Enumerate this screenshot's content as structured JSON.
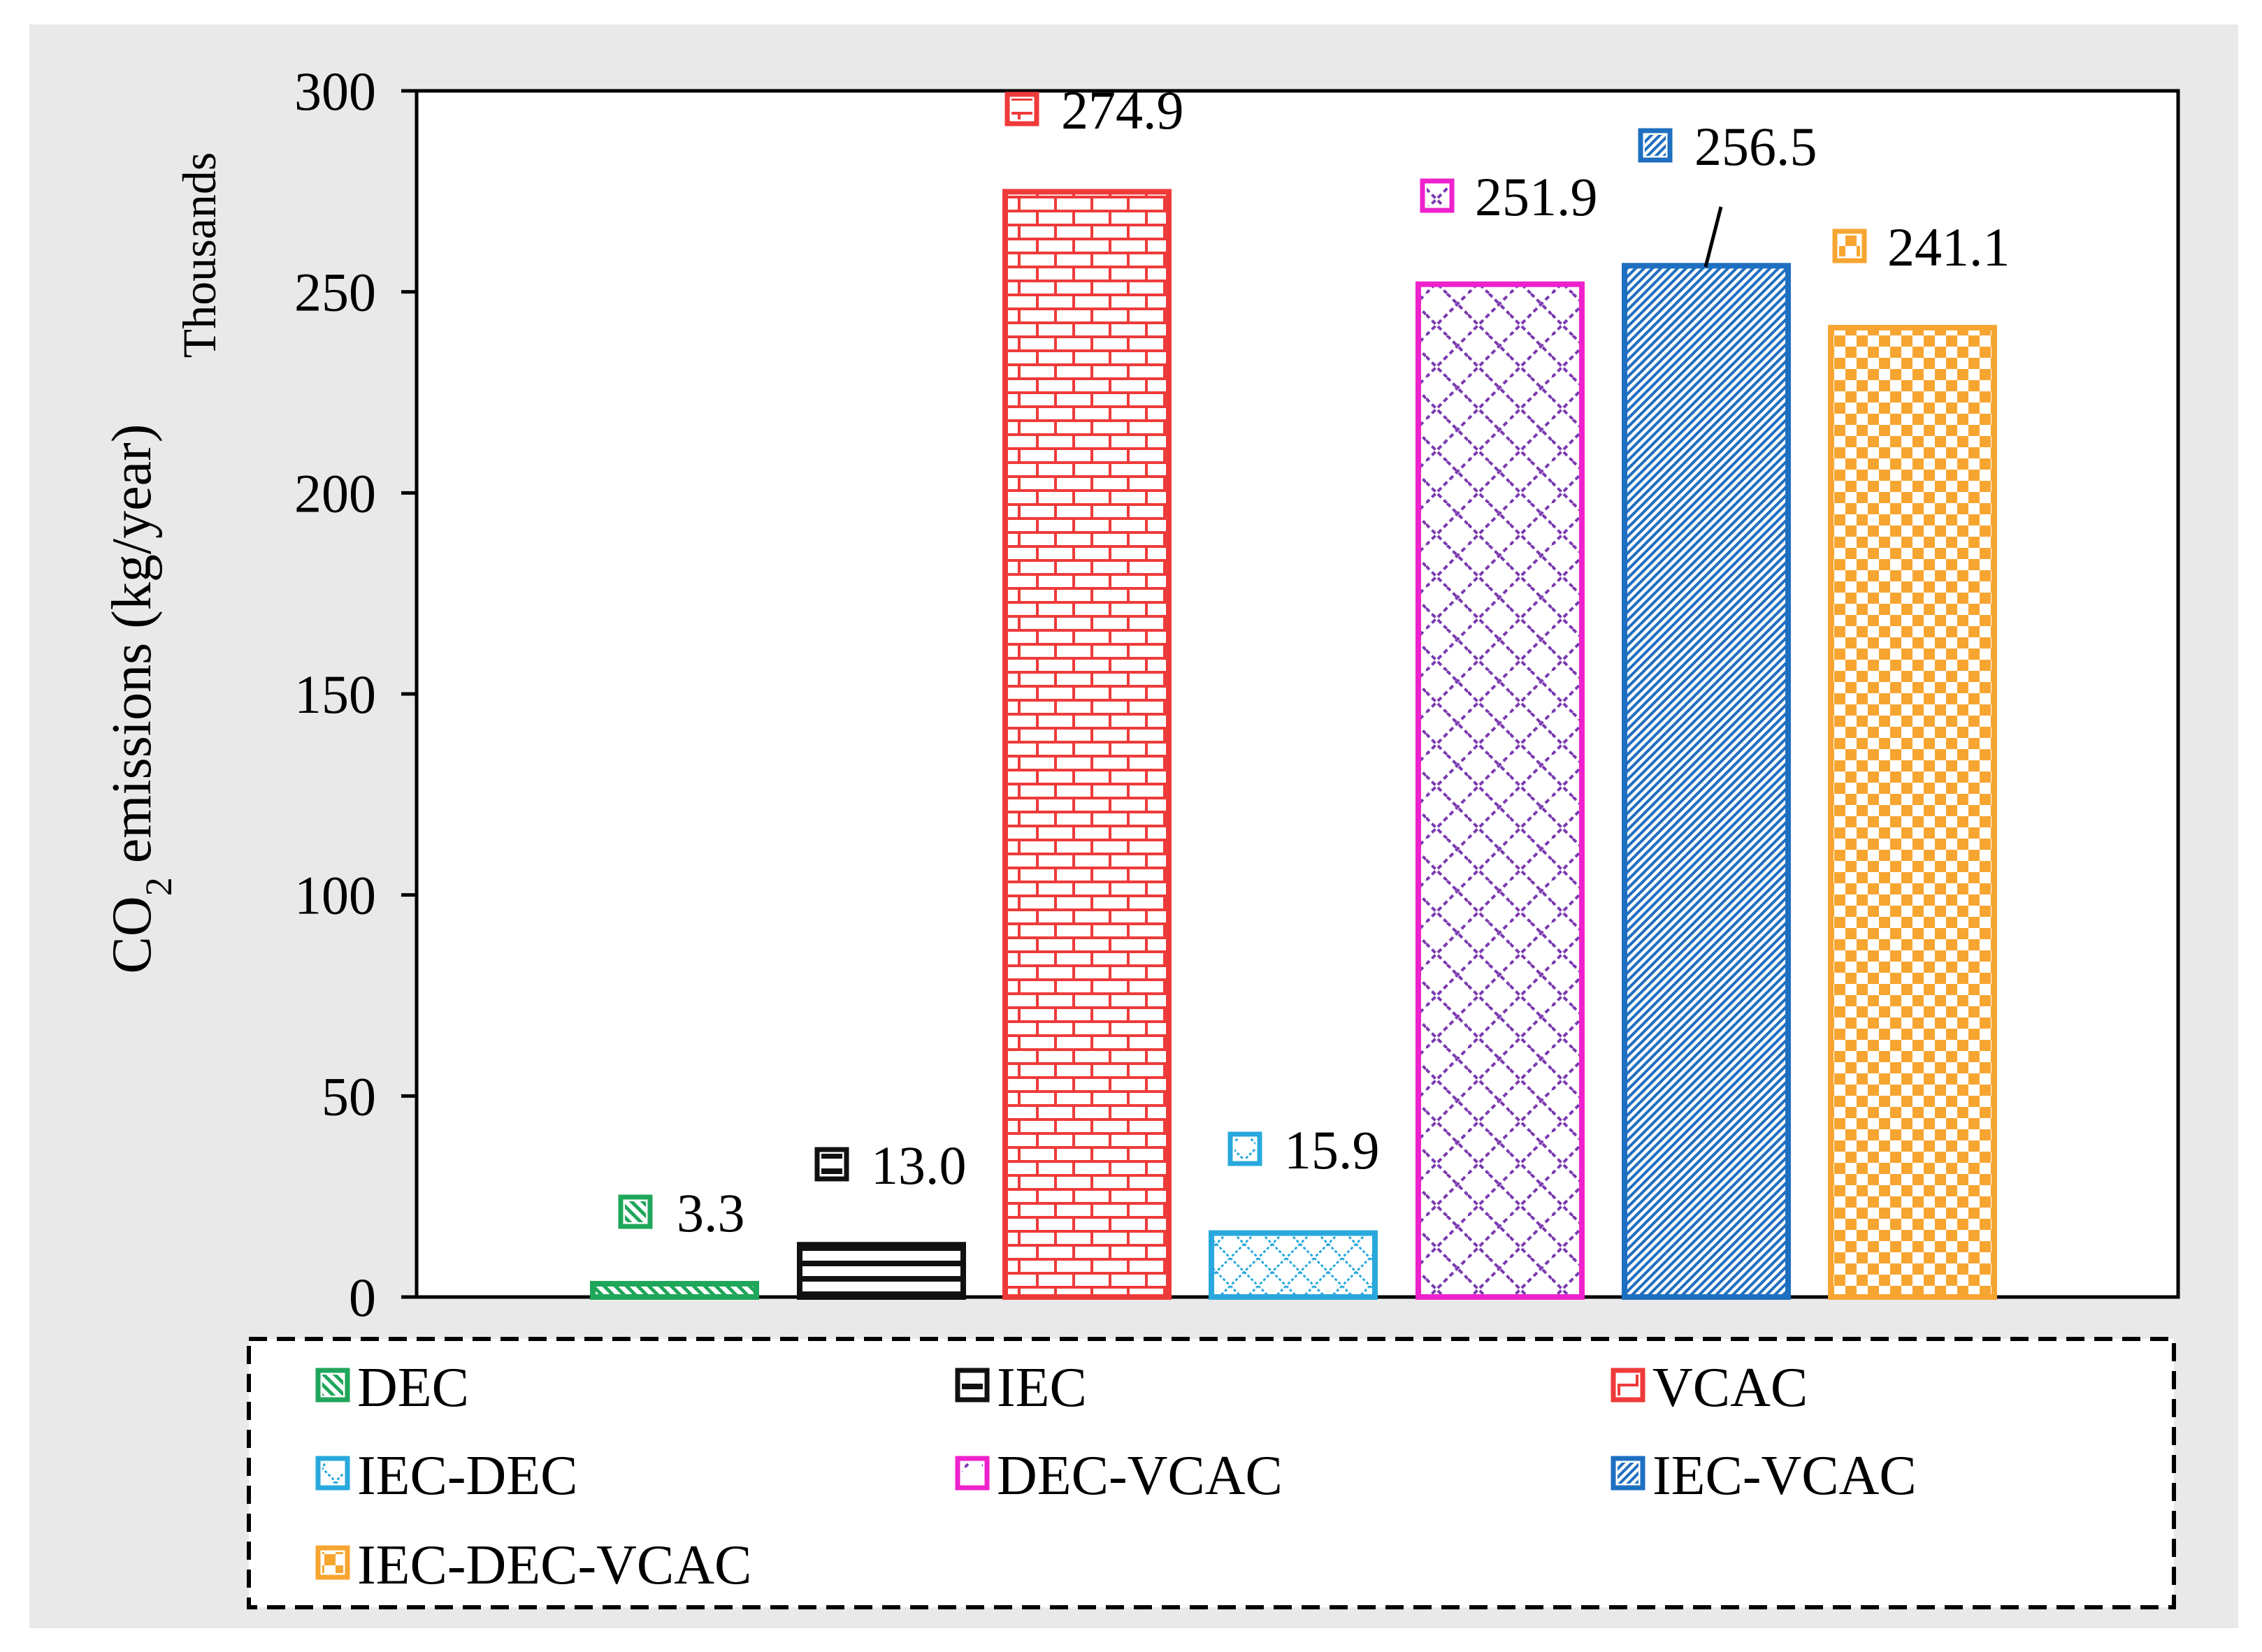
{
  "chart_data": {
    "type": "bar",
    "title": "",
    "xlabel": "",
    "ylabel": {
      "prefix": "CO",
      "subscript": "2",
      "suffix": " emissions (kg/year)"
    },
    "yunit": "Thousands",
    "ylim": [
      0,
      300
    ],
    "yticks": [
      0,
      50,
      100,
      150,
      200,
      250,
      300
    ],
    "ytick_labels": [
      "0",
      "50",
      "100",
      "150",
      "200",
      "250",
      "300"
    ],
    "grid": false,
    "legend_position": "bottom",
    "categories": [
      "DEC",
      "IEC",
      "VCAC",
      "IEC-DEC",
      "DEC-VCAC",
      "IEC-VCAC",
      "IEC-DEC-VCAC"
    ],
    "values": [
      3.3,
      13.0,
      274.9,
      15.9,
      251.9,
      256.5,
      241.1
    ],
    "value_labels": [
      "3.3",
      "13.0",
      "274.9",
      "15.9",
      "251.9",
      "256.5",
      "241.1"
    ],
    "colors": [
      "#1fa65a",
      "#111111",
      "#ef3a3a",
      "#28a8dc",
      "#ee22cc",
      "#1e6fc0",
      "#f7a531"
    ],
    "pattern_colors": [
      "#1fa65a",
      "#111111",
      "#ef3a3a",
      "#28a8dc",
      "#7b3ab0",
      "#1e6fc0",
      "#f7a531"
    ],
    "patterns": [
      "diagonal-stripes",
      "horizontal-lines",
      "brick",
      "diamond-grid",
      "dashed-zigzag",
      "dense-diagonal",
      "checkerboard"
    ]
  }
}
